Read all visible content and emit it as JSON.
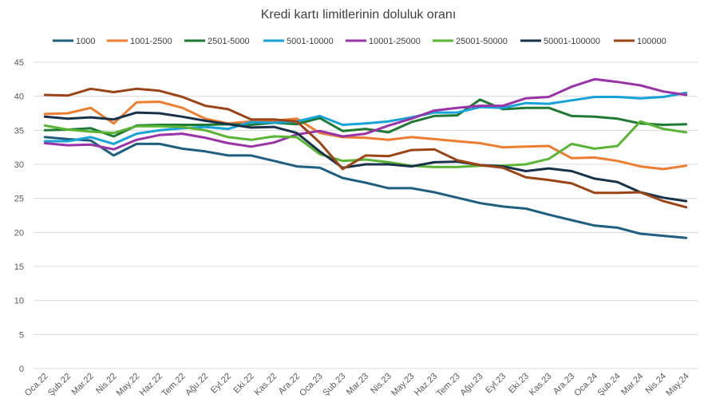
{
  "chart_data": {
    "type": "line",
    "title": "Kredi kartı limitlerinin doluluk oranı",
    "xlabel": "",
    "ylabel": "",
    "ylim": [
      0,
      45
    ],
    "yticks": [
      0,
      5,
      10,
      15,
      20,
      25,
      30,
      35,
      40,
      45
    ],
    "grid": true,
    "legend_position": "top",
    "categories": [
      "Oca.22",
      "Şub.22",
      "Mar.22",
      "Nis.22",
      "May.22",
      "Haz.22",
      "Tem.22",
      "Ağu.22",
      "Eyl.22",
      "Eki.22",
      "Kas.22",
      "Ara.22",
      "Oca.23",
      "Şub.23",
      "Mar.23",
      "Nis.23",
      "May.23",
      "Haz.23",
      "Tem.23",
      "Ağu.23",
      "Eyl.23",
      "Eki.23",
      "Kas.23",
      "Ara.23",
      "Oca.24",
      "Şub.24",
      "Mar.24",
      "Nis.24",
      "May.24"
    ],
    "series": [
      {
        "name": "1000",
        "color": "#1f5f7f",
        "values": [
          34.0,
          33.7,
          33.5,
          31.3,
          33.0,
          33.0,
          32.3,
          31.9,
          31.3,
          31.3,
          30.5,
          29.7,
          29.5,
          28.0,
          27.3,
          26.5,
          26.5,
          25.9,
          25.1,
          24.3,
          23.8,
          23.5,
          22.6,
          21.8,
          21.0,
          20.7,
          19.8,
          19.5,
          19.2
        ]
      },
      {
        "name": "1001-2500",
        "color": "#ed7d31",
        "values": [
          37.4,
          37.5,
          38.3,
          36.0,
          39.1,
          39.2,
          38.3,
          36.7,
          36.0,
          36.3,
          36.4,
          36.7,
          34.6,
          34.0,
          33.9,
          33.6,
          34.0,
          33.7,
          33.4,
          33.1,
          32.5,
          32.6,
          32.7,
          30.9,
          31.0,
          30.5,
          29.7,
          29.3,
          29.8
        ]
      },
      {
        "name": "2501-5000",
        "color": "#1e7a32",
        "values": [
          35.0,
          35.1,
          35.3,
          34.1,
          35.7,
          35.8,
          35.8,
          35.8,
          35.9,
          35.8,
          36.1,
          35.9,
          36.8,
          34.9,
          35.2,
          34.7,
          36.2,
          37.1,
          37.2,
          39.5,
          38.1,
          38.3,
          38.3,
          37.1,
          37.0,
          36.7,
          36.0,
          35.8,
          35.9
        ]
      },
      {
        "name": "5001-10000",
        "color": "#17a2d8",
        "values": [
          33.4,
          33.4,
          34.0,
          33.0,
          34.5,
          35.0,
          35.3,
          35.5,
          35.2,
          36.2,
          36.1,
          36.3,
          37.1,
          35.8,
          36.0,
          36.3,
          36.9,
          37.6,
          37.6,
          38.4,
          38.3,
          39.0,
          38.9,
          39.4,
          39.9,
          39.9,
          39.7,
          39.9,
          40.5
        ]
      },
      {
        "name": "10001-25000",
        "color": "#9a32a8",
        "values": [
          33.1,
          32.8,
          32.9,
          32.2,
          33.6,
          34.3,
          34.5,
          33.9,
          33.1,
          32.6,
          33.2,
          34.4,
          34.9,
          34.1,
          34.5,
          35.7,
          36.7,
          37.9,
          38.3,
          38.6,
          38.6,
          39.7,
          39.9,
          41.4,
          42.5,
          42.1,
          41.6,
          40.7,
          40.2
        ]
      },
      {
        "name": "25001-50000",
        "color": "#5ab534",
        "values": [
          35.7,
          35.1,
          34.8,
          34.6,
          35.6,
          35.6,
          35.5,
          35.0,
          34.0,
          33.6,
          34.1,
          34.0,
          31.5,
          30.5,
          30.7,
          30.3,
          29.8,
          29.6,
          29.6,
          29.8,
          29.8,
          30.0,
          30.8,
          33.0,
          32.3,
          32.7,
          36.3,
          35.2,
          34.7
        ]
      },
      {
        "name": "50001-100000",
        "color": "#17324a",
        "values": [
          37.0,
          36.7,
          36.9,
          36.6,
          37.6,
          37.5,
          37.0,
          36.4,
          35.9,
          35.4,
          35.5,
          34.6,
          31.9,
          29.5,
          30.0,
          30.0,
          29.7,
          30.3,
          30.4,
          29.9,
          29.7,
          29.0,
          29.4,
          29.0,
          27.9,
          27.4,
          25.9,
          25.1,
          24.6
        ]
      },
      {
        "name": "100000",
        "color": "#9c4416",
        "values": [
          40.2,
          40.1,
          41.1,
          40.6,
          41.1,
          40.8,
          39.9,
          38.6,
          38.1,
          36.6,
          36.6,
          36.3,
          33.2,
          29.3,
          31.3,
          31.2,
          32.1,
          32.2,
          30.6,
          29.9,
          29.5,
          28.1,
          27.7,
          27.2,
          25.8,
          25.8,
          25.9,
          24.6,
          23.7
        ]
      }
    ]
  }
}
